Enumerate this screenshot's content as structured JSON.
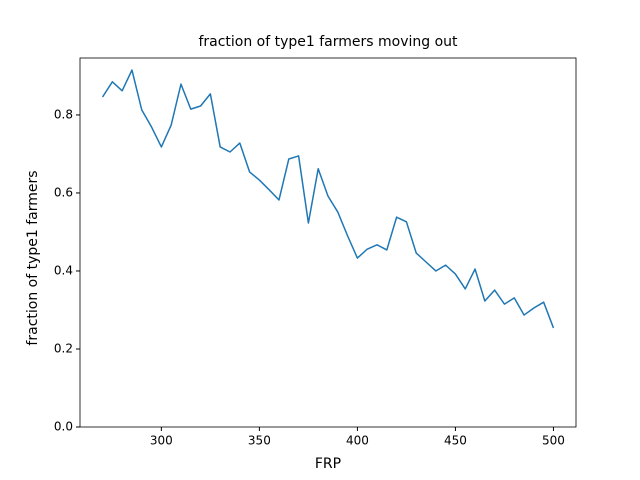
{
  "chart_data": {
    "type": "line",
    "title": "fraction of type1 farmers moving out",
    "x_label": "FRP",
    "y_label": "fraction of type1 farmers",
    "x": [
      270,
      275,
      280,
      285,
      290,
      295,
      300,
      305,
      310,
      315,
      320,
      325,
      330,
      335,
      340,
      345,
      350,
      355,
      360,
      365,
      370,
      375,
      380,
      385,
      390,
      395,
      400,
      405,
      410,
      415,
      420,
      425,
      430,
      435,
      440,
      445,
      450,
      455,
      460,
      465,
      470,
      475,
      480,
      485,
      490,
      495,
      500
    ],
    "values": [
      0.846,
      0.885,
      0.862,
      0.915,
      0.813,
      0.769,
      0.718,
      0.774,
      0.879,
      0.815,
      0.823,
      0.854,
      0.718,
      0.705,
      0.728,
      0.654,
      0.633,
      0.608,
      0.582,
      0.687,
      0.695,
      0.523,
      0.662,
      0.592,
      0.551,
      0.49,
      0.433,
      0.456,
      0.467,
      0.454,
      0.538,
      0.526,
      0.446,
      0.423,
      0.4,
      0.415,
      0.392,
      0.354,
      0.405,
      0.323,
      0.351,
      0.315,
      0.331,
      0.287,
      0.305,
      0.32,
      0.254
    ],
    "color": "#1f77b4",
    "xlim": [
      258.5,
      511.5
    ],
    "xticks": [
      300,
      350,
      400,
      450,
      500
    ],
    "ylim": [
      0,
      0.946
    ],
    "yticks": [
      {
        "value": 0,
        "label": "0.0"
      },
      0.2,
      0.4,
      0.6,
      0.8
    ]
  }
}
